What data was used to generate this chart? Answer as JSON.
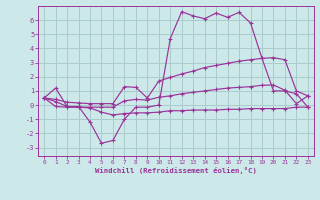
{
  "xlabel": "Windchill (Refroidissement éolien,°C)",
  "background_color": "#cce8e8",
  "grid_color": "#aacccc",
  "line_color": "#993399",
  "x_ticks": [
    0,
    1,
    2,
    3,
    4,
    5,
    6,
    7,
    8,
    9,
    10,
    11,
    12,
    13,
    14,
    15,
    16,
    17,
    18,
    19,
    20,
    21,
    22,
    23
  ],
  "y_ticks": [
    -3,
    -2,
    -1,
    0,
    1,
    2,
    3,
    4,
    5,
    6
  ],
  "ylim": [
    -3.6,
    7.0
  ],
  "xlim": [
    -0.5,
    23.5
  ],
  "curve1_y": [
    0.5,
    1.2,
    -0.1,
    -0.1,
    -1.2,
    -2.7,
    -2.5,
    -1.0,
    -0.15,
    -0.15,
    0.0,
    4.7,
    6.6,
    6.3,
    6.1,
    6.5,
    6.2,
    6.55,
    5.8,
    3.3,
    1.0,
    1.0,
    0.8,
    -0.15
  ],
  "curve2_y": [
    0.5,
    0.4,
    0.2,
    0.15,
    0.1,
    0.1,
    0.1,
    1.3,
    1.25,
    0.5,
    1.7,
    1.95,
    2.2,
    2.4,
    2.65,
    2.8,
    2.95,
    3.1,
    3.2,
    3.3,
    3.35,
    3.2,
    1.0,
    0.65
  ],
  "curve3_y": [
    0.5,
    0.25,
    -0.1,
    -0.15,
    -0.15,
    -0.15,
    -0.15,
    0.3,
    0.4,
    0.35,
    0.55,
    0.65,
    0.8,
    0.9,
    1.0,
    1.1,
    1.2,
    1.25,
    1.3,
    1.4,
    1.42,
    1.05,
    0.1,
    0.65
  ],
  "curve4_y": [
    0.5,
    -0.1,
    -0.15,
    -0.15,
    -0.2,
    -0.5,
    -0.7,
    -0.6,
    -0.55,
    -0.55,
    -0.5,
    -0.4,
    -0.4,
    -0.35,
    -0.35,
    -0.35,
    -0.3,
    -0.3,
    -0.25,
    -0.25,
    -0.25,
    -0.25,
    -0.15,
    -0.15
  ]
}
